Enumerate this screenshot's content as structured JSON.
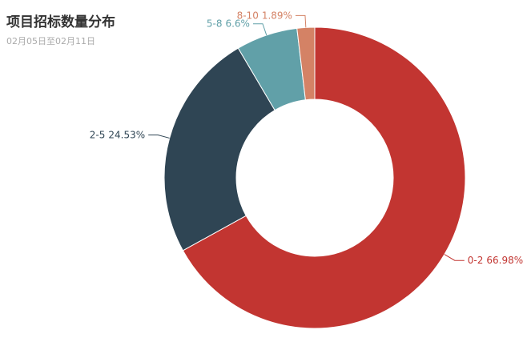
{
  "chart_data": {
    "type": "pie",
    "title": "项目招标数量分布",
    "subtitle": "02月05日至02月11日",
    "categories": [
      "0-2",
      "2-5",
      "5-8",
      "8-10"
    ],
    "values": [
      66.98,
      24.53,
      6.6,
      1.89
    ],
    "value_labels": [
      "66.98%",
      "24.53%",
      "6.6%",
      "1.89%"
    ],
    "colors": [
      "#c23531",
      "#2f4554",
      "#61a0a8",
      "#d48265"
    ]
  }
}
